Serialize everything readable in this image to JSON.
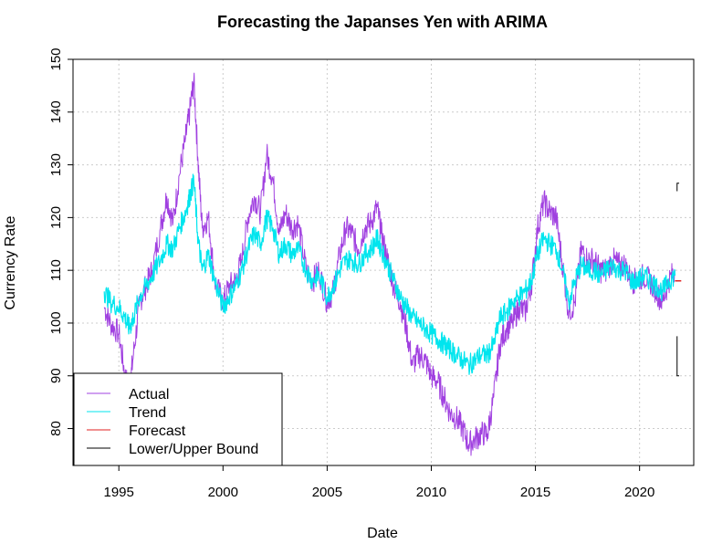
{
  "chart_data": {
    "type": "line",
    "title": "Forecasting the Japanses Yen with ARIMA",
    "xlabel": "Date",
    "ylabel": "Currency Rate",
    "xlim": [
      1992.8,
      2022.6
    ],
    "ylim": [
      73.0,
      150.0
    ],
    "x_ticks": [
      1995,
      2000,
      2005,
      2010,
      2015,
      2020
    ],
    "y_ticks": [
      80,
      90,
      100,
      110,
      120,
      130,
      140,
      150
    ],
    "grid": true,
    "legend_position": "bottom-left",
    "legend": [
      "Actual",
      "Trend",
      "Forecast",
      "Lower/Upper Bound"
    ],
    "colors": {
      "actual": "#a040e0",
      "trend": "#00e5ee",
      "forecast": "#e02020",
      "bound": "#000000",
      "grid": "#cccccc"
    },
    "series": [
      {
        "name": "Actual",
        "x": [
          1994.3,
          1994.6,
          1995.0,
          1995.3,
          1995.5,
          1995.7,
          1996.0,
          1996.3,
          1996.6,
          1997.0,
          1997.3,
          1997.6,
          1997.9,
          1998.2,
          1998.4,
          1998.6,
          1998.8,
          1999.0,
          1999.3,
          1999.6,
          2000.0,
          2000.3,
          2000.6,
          2000.9,
          2001.2,
          2001.5,
          2001.8,
          2002.1,
          2002.4,
          2002.7,
          2003.0,
          2003.3,
          2003.6,
          2004.0,
          2004.3,
          2004.6,
          2005.0,
          2005.3,
          2005.6,
          2005.9,
          2006.2,
          2006.5,
          2006.8,
          2007.1,
          2007.4,
          2007.6,
          2007.9,
          2008.2,
          2008.5,
          2008.8,
          2009.1,
          2009.4,
          2009.7,
          2010.0,
          2010.3,
          2010.6,
          2010.9,
          2011.2,
          2011.5,
          2011.8,
          2012.1,
          2012.4,
          2012.7,
          2013.0,
          2013.3,
          2013.6,
          2013.9,
          2014.2,
          2014.5,
          2014.8,
          2015.1,
          2015.4,
          2015.7,
          2016.0,
          2016.3,
          2016.6,
          2016.9,
          2017.2,
          2017.5,
          2017.8,
          2018.1,
          2018.4,
          2018.7,
          2019.0,
          2019.3,
          2019.6,
          2019.9,
          2020.2,
          2020.5,
          2020.8,
          2021.1,
          2021.4,
          2021.7
        ],
        "y": [
          103,
          100,
          98,
          90,
          87,
          94,
          104,
          107,
          110,
          118,
          124,
          119,
          128,
          135,
          140,
          146,
          131,
          118,
          120,
          108,
          104,
          107,
          108,
          112,
          120,
          124,
          121,
          132,
          127,
          117,
          121,
          118,
          119,
          110,
          108,
          110,
          104,
          106,
          113,
          118,
          117,
          114,
          118,
          119,
          122,
          117,
          112,
          107,
          104,
          99,
          92,
          94,
          93,
          90,
          89,
          86,
          83,
          82,
          80,
          77,
          78,
          79,
          79,
          86,
          96,
          99,
          100,
          103,
          102,
          107,
          118,
          123,
          121,
          120,
          111,
          102,
          104,
          114,
          112,
          112,
          110,
          110,
          112,
          111,
          111,
          108,
          108,
          109,
          108,
          106,
          104,
          108,
          110
        ]
      },
      {
        "name": "Trend",
        "x": [
          1994.3,
          1994.6,
          1995.0,
          1995.3,
          1995.5,
          1995.7,
          1996.0,
          1996.3,
          1996.6,
          1997.0,
          1997.3,
          1997.6,
          1997.9,
          1998.2,
          1998.4,
          1998.6,
          1998.8,
          1999.0,
          1999.3,
          1999.6,
          2000.0,
          2000.3,
          2000.6,
          2000.9,
          2001.2,
          2001.5,
          2001.8,
          2002.1,
          2002.4,
          2002.7,
          2003.0,
          2003.3,
          2003.6,
          2004.0,
          2004.3,
          2004.6,
          2005.0,
          2005.3,
          2005.6,
          2005.9,
          2006.2,
          2006.5,
          2006.8,
          2007.1,
          2007.4,
          2007.6,
          2007.9,
          2008.2,
          2008.5,
          2008.8,
          2009.1,
          2009.4,
          2009.7,
          2010.0,
          2010.3,
          2010.6,
          2010.9,
          2011.2,
          2011.5,
          2011.8,
          2012.1,
          2012.4,
          2012.7,
          2013.0,
          2013.3,
          2013.6,
          2013.9,
          2014.2,
          2014.5,
          2014.8,
          2015.1,
          2015.4,
          2015.7,
          2016.0,
          2016.3,
          2016.6,
          2016.9,
          2017.2,
          2017.5,
          2017.8,
          2018.1,
          2018.4,
          2018.7,
          2019.0,
          2019.3,
          2019.6,
          2019.9,
          2020.2,
          2020.5,
          2020.8,
          2021.1,
          2021.4,
          2021.7
        ],
        "y": [
          106,
          104,
          103,
          101,
          99,
          101,
          105,
          107,
          109,
          112,
          115,
          114,
          118,
          121,
          124,
          127,
          116,
          110,
          113,
          108,
          103,
          105,
          107,
          110,
          114,
          117,
          115,
          120,
          118,
          113,
          115,
          113,
          114,
          110,
          108,
          109,
          105,
          107,
          110,
          112,
          112,
          111,
          113,
          114,
          116,
          114,
          111,
          108,
          105,
          103,
          101,
          100,
          99,
          98,
          97,
          96,
          95,
          94,
          93,
          92,
          93,
          94,
          94,
          96,
          101,
          102,
          104,
          105,
          106,
          108,
          113,
          116,
          115,
          114,
          110,
          104,
          108,
          111,
          110,
          110,
          109,
          110,
          111,
          110,
          110,
          108,
          108,
          109,
          108,
          107,
          106,
          108,
          109
        ]
      },
      {
        "name": "Forecast",
        "x": [
          2021.7,
          2022.0
        ],
        "y": [
          108,
          108
        ]
      },
      {
        "name": "Lower/Upper Bound",
        "x": [
          2021.8,
          2021.9
        ],
        "upper": [
          125.0,
          126.5
        ],
        "lower": [
          90.0,
          97.5
        ]
      }
    ]
  }
}
